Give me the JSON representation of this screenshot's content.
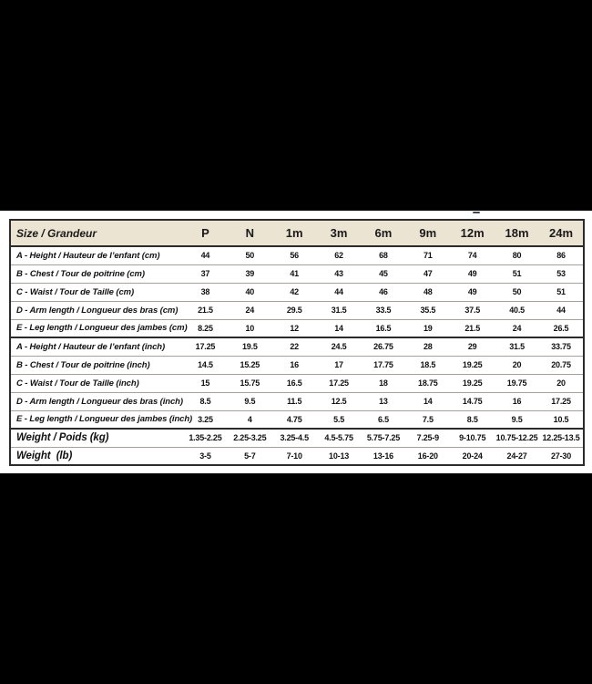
{
  "page": {
    "background_color": "#000000",
    "strip_color": "#ffffff",
    "header_bg_color": "#ece4d2",
    "border_color": "#2b2b2b",
    "row_line_color": "#a6a29a"
  },
  "table": {
    "title": "Size / Grandeur",
    "columns": [
      "P",
      "N",
      "1m",
      "3m",
      "6m",
      "9m",
      "12m",
      "18m",
      "24m"
    ],
    "rows": [
      {
        "label": "A - Height / Hauteur de l’enfant (cm)",
        "section_start": false,
        "emphasis": false,
        "values": [
          "44",
          "50",
          "56",
          "62",
          "68",
          "71",
          "74",
          "80",
          "86"
        ]
      },
      {
        "label": "B - Chest / Tour de poitrine (cm)",
        "section_start": false,
        "emphasis": false,
        "values": [
          "37",
          "39",
          "41",
          "43",
          "45",
          "47",
          "49",
          "51",
          "53"
        ]
      },
      {
        "label": "C - Waist / Tour de Taille (cm)",
        "section_start": false,
        "emphasis": false,
        "values": [
          "38",
          "40",
          "42",
          "44",
          "46",
          "48",
          "49",
          "50",
          "51"
        ]
      },
      {
        "label": "D - Arm length / Longueur des bras (cm)",
        "section_start": false,
        "emphasis": false,
        "values": [
          "21.5",
          "24",
          "29.5",
          "31.5",
          "33.5",
          "35.5",
          "37.5",
          "40.5",
          "44"
        ]
      },
      {
        "label": "E - Leg length / Longueur des jambes (cm)",
        "section_start": false,
        "emphasis": false,
        "values": [
          "8.25",
          "10",
          "12",
          "14",
          "16.5",
          "19",
          "21.5",
          "24",
          "26.5"
        ]
      },
      {
        "label": "A - Height / Hauteur de l’enfant (inch)",
        "section_start": true,
        "emphasis": false,
        "values": [
          "17.25",
          "19.5",
          "22",
          "24.5",
          "26.75",
          "28",
          "29",
          "31.5",
          "33.75"
        ]
      },
      {
        "label": "B - Chest / Tour de poitrine (inch)",
        "section_start": false,
        "emphasis": false,
        "values": [
          "14.5",
          "15.25",
          "16",
          "17",
          "17.75",
          "18.5",
          "19.25",
          "20",
          "20.75"
        ]
      },
      {
        "label": "C - Waist / Tour de Taille (inch)",
        "section_start": false,
        "emphasis": false,
        "values": [
          "15",
          "15.75",
          "16.5",
          "17.25",
          "18",
          "18.75",
          "19.25",
          "19.75",
          "20"
        ]
      },
      {
        "label": "D - Arm length / Longueur des bras (inch)",
        "section_start": false,
        "emphasis": false,
        "values": [
          "8.5",
          "9.5",
          "11.5",
          "12.5",
          "13",
          "14",
          "14.75",
          "16",
          "17.25"
        ]
      },
      {
        "label": "E - Leg length / Longueur des jambes (inch)",
        "section_start": false,
        "emphasis": false,
        "values": [
          "3.25",
          "4",
          "4.75",
          "5.5",
          "6.5",
          "7.5",
          "8.5",
          "9.5",
          "10.5"
        ]
      },
      {
        "label": "Weight / Poids (kg)",
        "section_start": true,
        "emphasis": true,
        "values": [
          "1.35-2.25",
          "2.25-3.25",
          "3.25-4.5",
          "4.5-5.75",
          "5.75-7.25",
          "7.25-9",
          "9-10.75",
          "10.75-12.25",
          "12.25-13.5"
        ]
      },
      {
        "label": "Weight  (lb)",
        "section_start": false,
        "emphasis": true,
        "values": [
          "3-5",
          "5-7",
          "7-10",
          "10-13",
          "13-16",
          "16-20",
          "20-24",
          "24-27",
          "27-30"
        ]
      }
    ]
  }
}
